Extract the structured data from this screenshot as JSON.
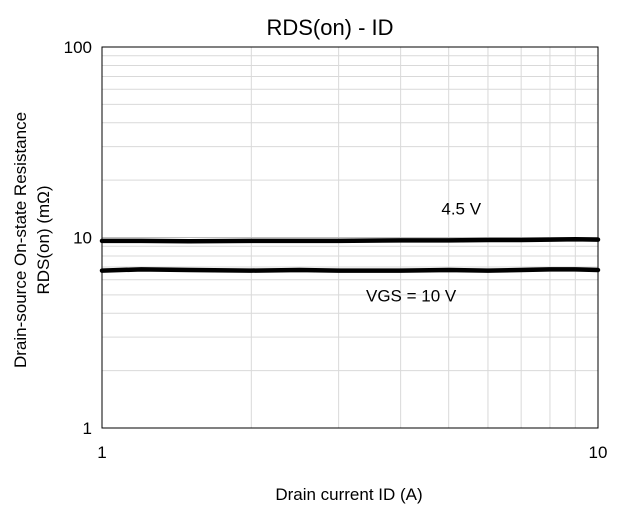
{
  "chart_data": {
    "type": "line",
    "title": "RDS(on) - ID",
    "xlabel": "Drain current ID (A)",
    "ylabel_line1": "Drain-source On-state Resistance",
    "ylabel_line2": "RDS(on) (mΩ)",
    "x_scale": "log",
    "y_scale": "log",
    "xlim": [
      1,
      10
    ],
    "ylim": [
      1,
      100
    ],
    "grid": true,
    "x_ticks": [
      {
        "value": 1,
        "label": "1"
      },
      {
        "value": 10,
        "label": "10"
      }
    ],
    "y_ticks": [
      {
        "value": 1,
        "label": "1"
      },
      {
        "value": 10,
        "label": "10"
      },
      {
        "value": 100,
        "label": "100"
      }
    ],
    "series": [
      {
        "x": [
          1,
          1.2,
          1.5,
          2,
          2.5,
          3,
          4,
          5,
          6,
          7,
          8,
          9,
          10
        ],
        "y": [
          9.6,
          9.6,
          9.55,
          9.6,
          9.6,
          9.6,
          9.65,
          9.65,
          9.7,
          9.7,
          9.75,
          9.8,
          9.75
        ],
        "color": "#000000"
      },
      {
        "x": [
          1,
          1.2,
          1.5,
          2,
          2.5,
          3,
          4,
          5,
          6,
          7,
          8,
          9,
          10
        ],
        "y": [
          6.7,
          6.8,
          6.75,
          6.7,
          6.75,
          6.7,
          6.7,
          6.75,
          6.7,
          6.75,
          6.8,
          6.8,
          6.75
        ],
        "color": "#000000"
      }
    ],
    "annotations": [
      {
        "text": "4.5 V",
        "x": 5.3,
        "y": 13.2
      },
      {
        "text": "VGS = 10 V",
        "x": 4.2,
        "y": 4.6
      }
    ]
  }
}
